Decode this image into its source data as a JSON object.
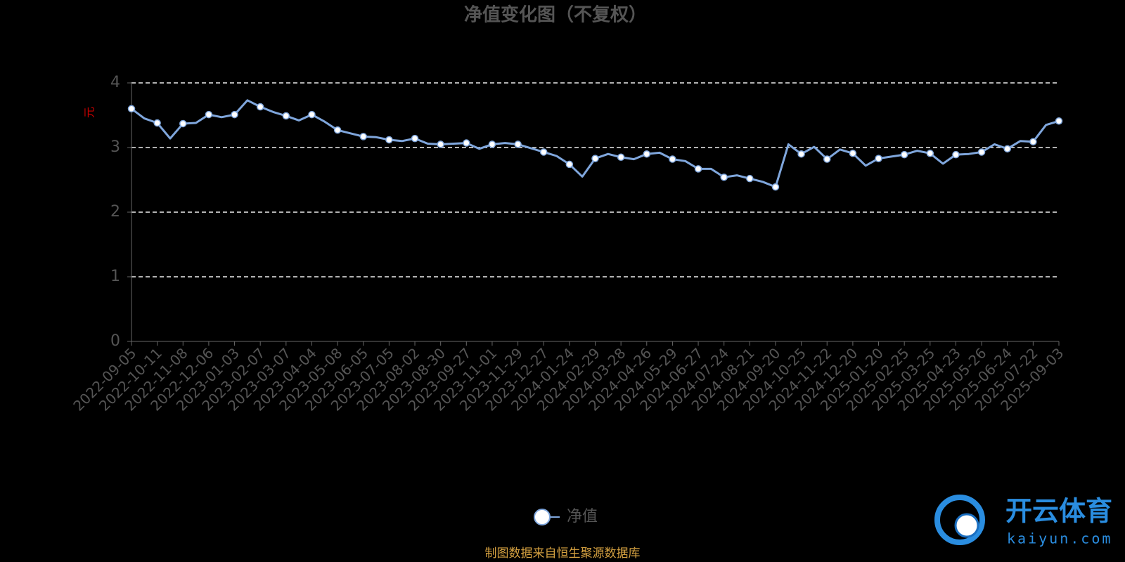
{
  "chart_data": {
    "type": "line",
    "title": "净值变化图（不复权）",
    "y_label": "元",
    "source": "制图数据来自恒生聚源数据库",
    "categories": [
      "2022-09-05",
      null,
      "2022-10-11",
      null,
      "2022-11-08",
      null,
      "2022-12-06",
      null,
      "2023-01-03",
      null,
      "2023-02-07",
      null,
      "2023-03-07",
      null,
      "2023-04-04",
      null,
      "2023-05-08",
      null,
      "2023-06-05",
      null,
      "2023-07-05",
      null,
      "2023-08-02",
      null,
      "2023-08-30",
      null,
      "2023-09-27",
      null,
      "2023-11-01",
      null,
      "2023-11-29",
      null,
      "2023-12-27",
      null,
      "2024-01-24",
      null,
      "2024-02-29",
      null,
      "2024-03-28",
      null,
      "2024-04-26",
      null,
      "2024-05-29",
      null,
      "2024-06-27",
      null,
      "2024-07-24",
      null,
      "2024-08-21",
      null,
      "2024-09-20",
      null,
      "2024-10-25",
      null,
      "2024-11-22",
      null,
      "2024-12-20",
      null,
      "2025-01-20",
      null,
      "2025-02-25",
      null,
      "2025-03-25",
      null,
      "2025-04-23",
      null,
      "2025-05-26",
      null,
      "2025-06-24",
      null,
      "2025-07-22",
      null,
      "2025-09-03"
    ],
    "series": [
      {
        "name": "净值",
        "color": "#7fa6dc",
        "values": [
          3.6,
          3.45,
          3.38,
          3.14,
          3.37,
          3.38,
          3.51,
          3.47,
          3.51,
          3.73,
          3.63,
          3.55,
          3.49,
          3.42,
          3.51,
          3.4,
          3.27,
          3.22,
          3.17,
          3.16,
          3.12,
          3.1,
          3.14,
          3.06,
          3.05,
          3.06,
          3.07,
          2.98,
          3.05,
          3.07,
          3.05,
          2.99,
          2.93,
          2.87,
          2.74,
          2.55,
          2.83,
          2.9,
          2.85,
          2.82,
          2.9,
          2.92,
          2.82,
          2.79,
          2.67,
          2.67,
          2.54,
          2.57,
          2.52,
          2.47,
          2.39,
          3.05,
          2.9,
          3.01,
          2.82,
          2.97,
          2.91,
          2.72,
          2.83,
          2.86,
          2.89,
          2.95,
          2.91,
          2.75,
          2.89,
          2.9,
          2.93,
          3.05,
          2.98,
          3.1,
          3.09,
          3.35,
          3.41
        ]
      }
    ],
    "ylim": [
      0,
      4
    ],
    "yticks": [
      0,
      1,
      2,
      3,
      4
    ],
    "grid": true
  },
  "watermark": {
    "brand": "开云体育",
    "url": "kaiyun.com"
  }
}
